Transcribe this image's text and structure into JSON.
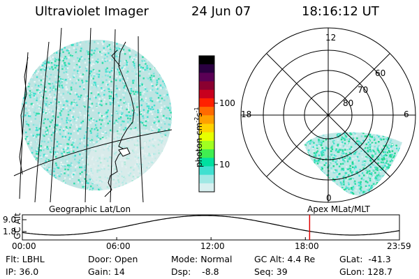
{
  "header": {
    "instrument": "Ultraviolet Imager",
    "date": "24 Jun 07",
    "time": "18:16:12 UT"
  },
  "geo_panel": {
    "label": "Geographic Lat/Lon"
  },
  "polar_panel": {
    "label": "Apex MLat/MLT",
    "mlt_labels": [
      "12",
      "18",
      "6",
      "0"
    ],
    "mlat_labels": [
      "60",
      "70",
      "80"
    ]
  },
  "colorbar": {
    "label": "photon cm⁻²s⁻¹",
    "label_parts": {
      "main": "photon cm",
      "exp1": "-2",
      "mid": "s",
      "exp2": "-1"
    },
    "ticks": [
      "100",
      "10"
    ],
    "colors": [
      "#000000",
      "#2a0040",
      "#5a0055",
      "#8a0030",
      "#c8001e",
      "#ff2000",
      "#ff6a00",
      "#ffa000",
      "#ffd200",
      "#e6ff00",
      "#a0ff20",
      "#40ee50",
      "#00e0a0",
      "#40e0d0",
      "#a0e8e4",
      "#d8f0f0"
    ]
  },
  "timeline": {
    "axis_label": "GC Alt",
    "y_ticks": [
      "9.0",
      "1.8"
    ],
    "x_ticks": [
      "00:00",
      "06:00",
      "12:00",
      "18:00",
      "23:59"
    ],
    "marker_time_hours": 18.27
  },
  "status": {
    "flt": "Flt: LBHL",
    "ip": "IP: 36.0",
    "door": "Door: Open",
    "gain": "Gain: 14",
    "mode": "Mode: Normal",
    "dsp": "Dsp:    -8.8",
    "gc_alt": "GC Alt: 4.4 Re",
    "seq": "Seq: 39",
    "glat": "GLat:  -41.3",
    "glon": "GLon: 128.7"
  }
}
